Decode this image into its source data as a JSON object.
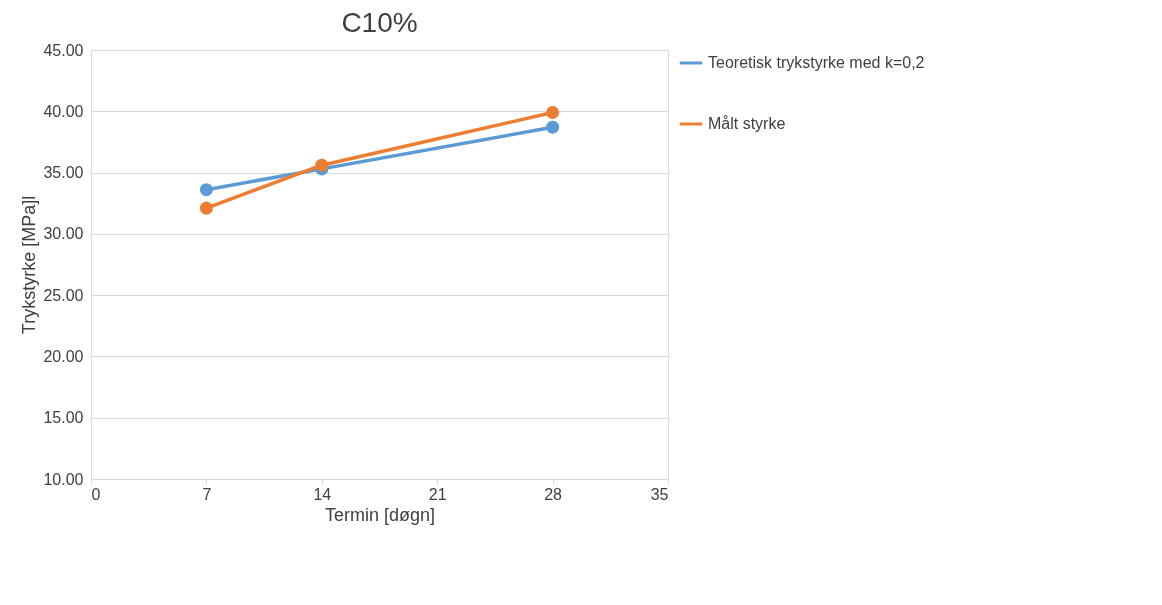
{
  "chart_data": {
    "type": "line",
    "title": "C10%",
    "xlabel": "Termin [døgn]",
    "ylabel": "Trykstyrke [MPa]l",
    "x": [
      7,
      14,
      28
    ],
    "series": [
      {
        "name": "Teoretisk trykstyrke med k=0,2",
        "color": "#5b9bd5",
        "values": [
          33.6,
          35.3,
          38.7
        ]
      },
      {
        "name": "Målt styrke",
        "color": "#ed7d31",
        "values": [
          32.1,
          35.6,
          39.9
        ]
      }
    ],
    "xlim": [
      0,
      35
    ],
    "xticks": [
      0,
      7,
      14,
      21,
      28,
      35
    ],
    "ylim": [
      10,
      45
    ],
    "yticks": [
      {
        "value": 10,
        "label": "10.00"
      },
      {
        "value": 15,
        "label": "15.00"
      },
      {
        "value": 20,
        "label": "20.00"
      },
      {
        "value": 25,
        "label": "25.00"
      },
      {
        "value": 30,
        "label": "30.00"
      },
      {
        "value": 35,
        "label": "35.00"
      },
      {
        "value": 40,
        "label": "40.00"
      },
      {
        "value": 45,
        "label": "45.00"
      }
    ],
    "grid": "y",
    "legend": "right",
    "marker": "circle",
    "line_style": "solid"
  }
}
